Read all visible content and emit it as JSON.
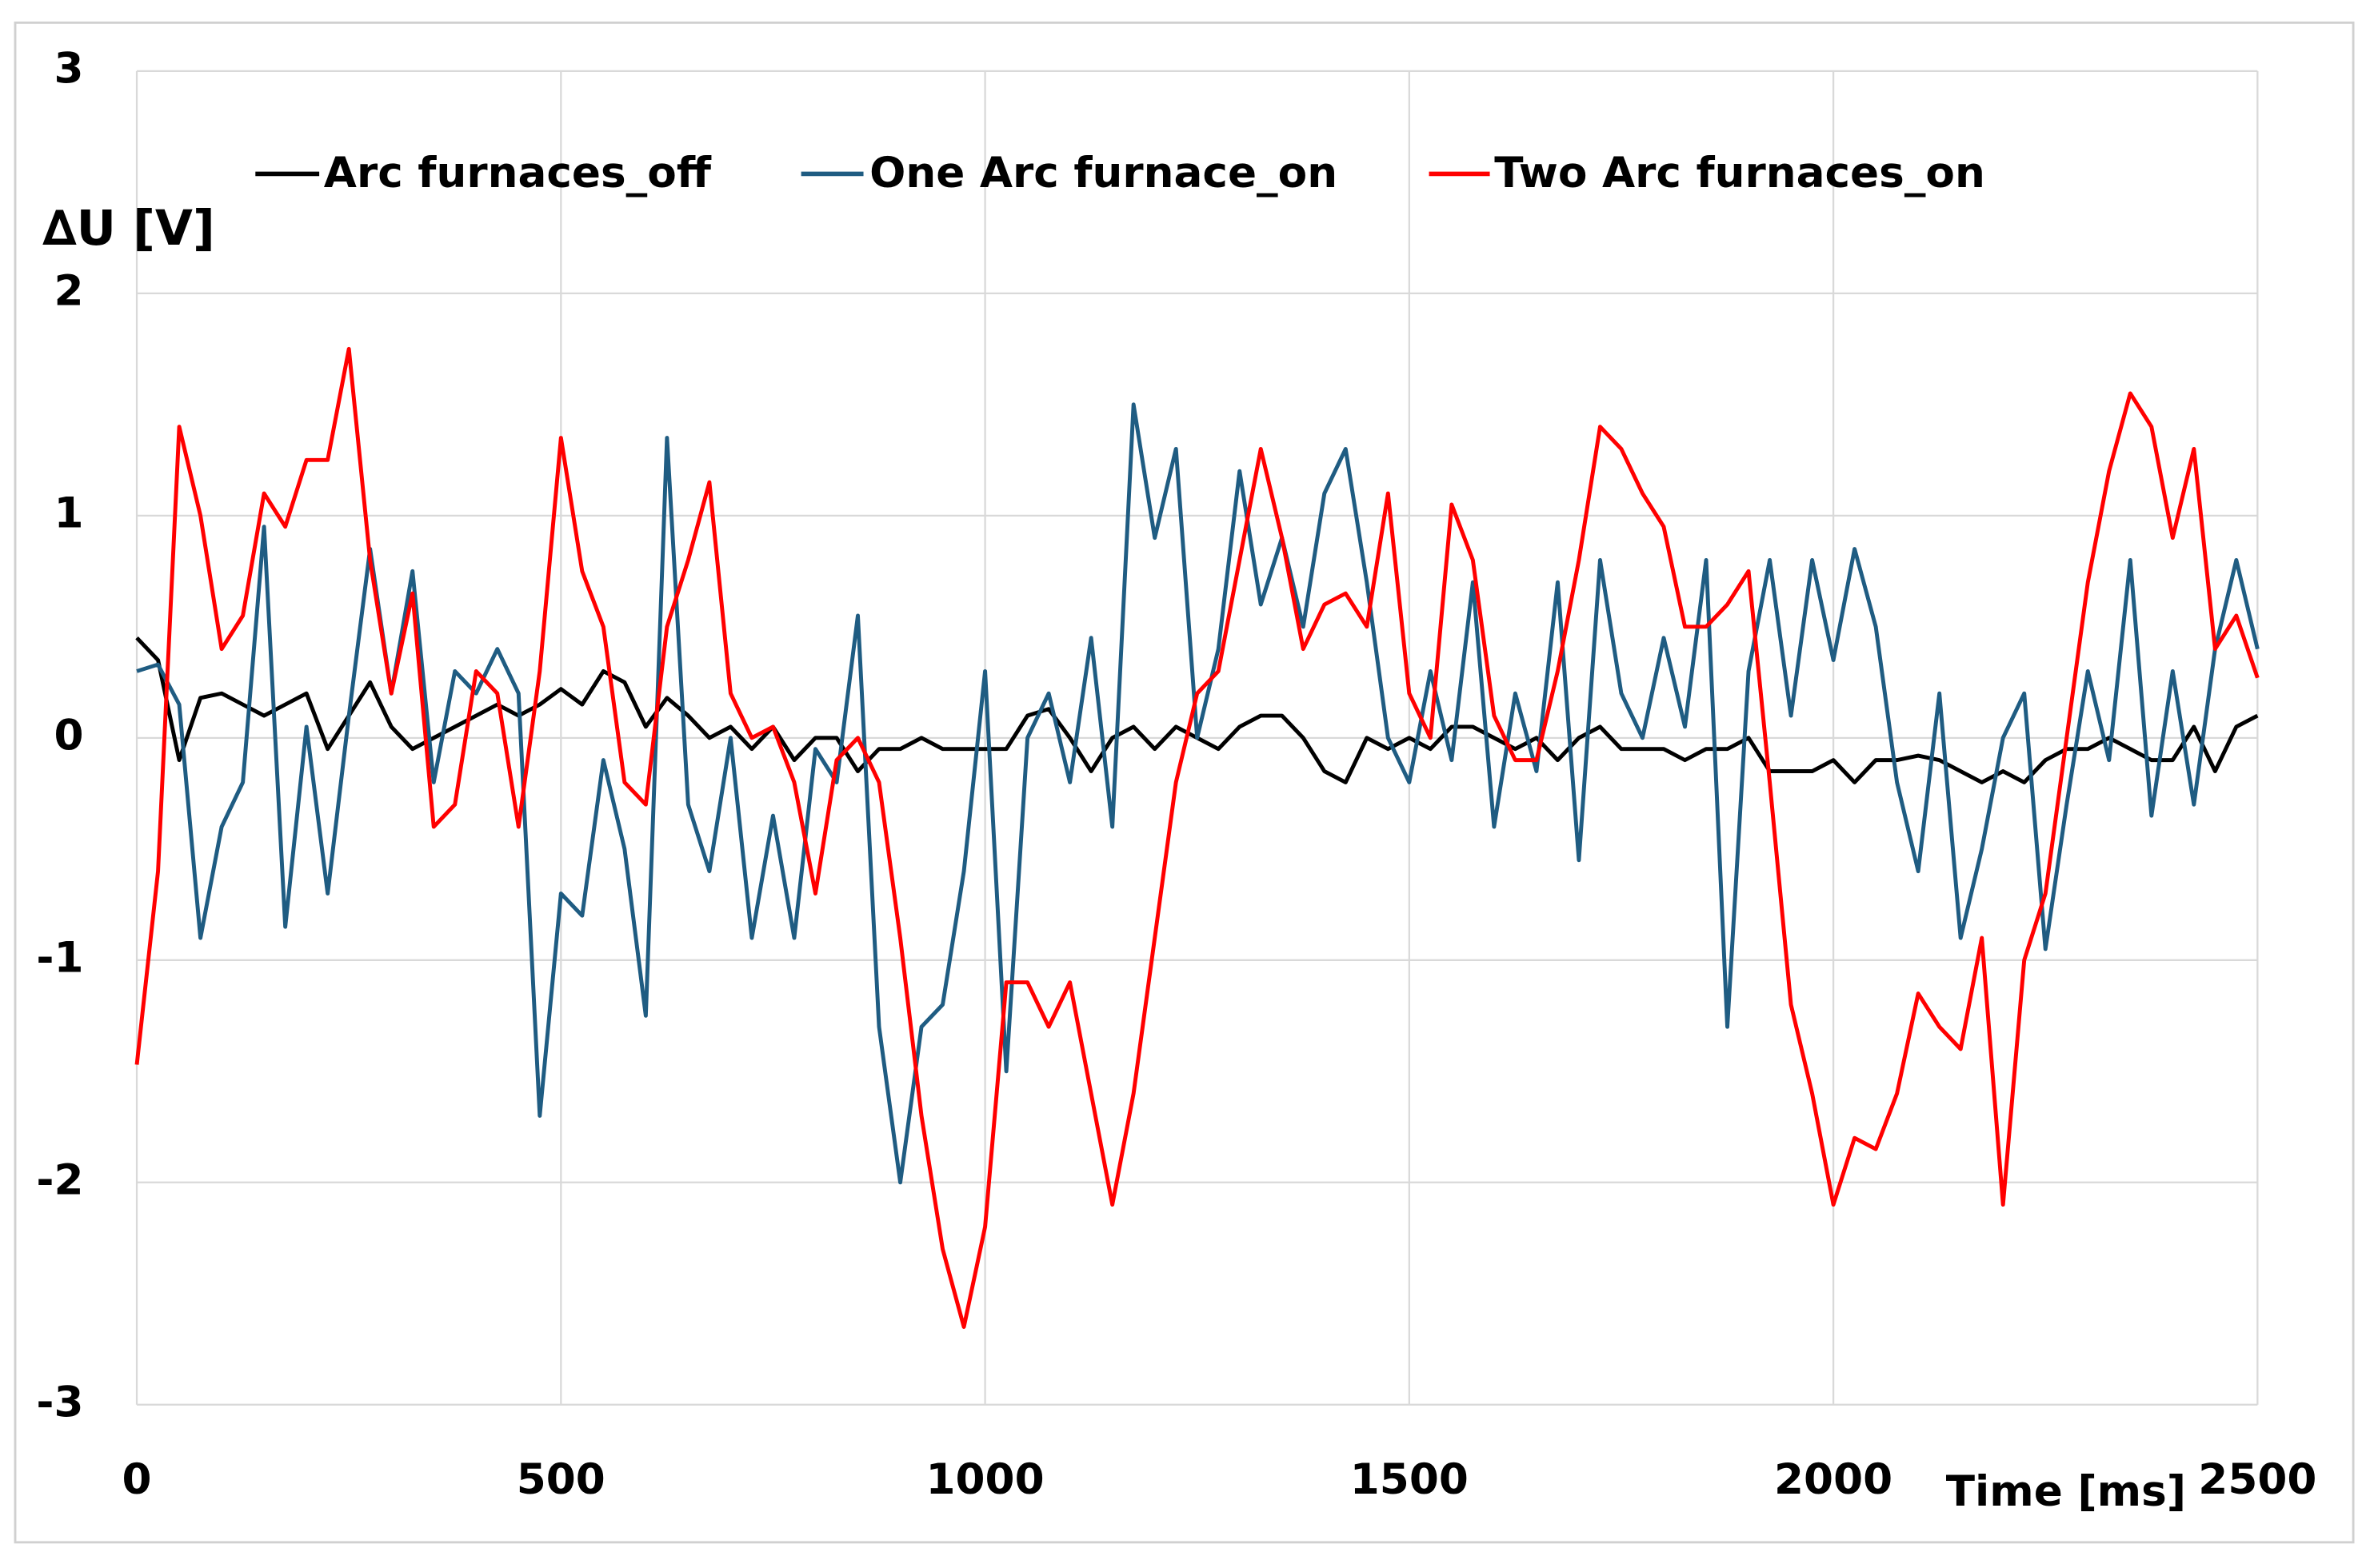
{
  "chart_data": {
    "type": "line",
    "ylabel": "∆U [V]",
    "xlabel": "Time [ms]",
    "legend": "top",
    "grid": true,
    "xlim": [
      0,
      2500
    ],
    "xticks": [
      0,
      500,
      1000,
      1500,
      2000,
      2500
    ],
    "ylim": [
      -3,
      3
    ],
    "yticks": [
      -3,
      -2,
      -1,
      0,
      1,
      2,
      3
    ],
    "x": [
      0,
      25,
      50,
      75,
      100,
      125,
      150,
      175,
      200,
      225,
      250,
      275,
      300,
      325,
      350,
      375,
      400,
      425,
      450,
      475,
      500,
      525,
      550,
      575,
      600,
      625,
      650,
      675,
      700,
      725,
      750,
      775,
      800,
      825,
      850,
      875,
      900,
      925,
      950,
      975,
      1000,
      1025,
      1050,
      1075,
      1100,
      1125,
      1150,
      1175,
      1200,
      1225,
      1250,
      1275,
      1300,
      1325,
      1350,
      1375,
      1400,
      1425,
      1450,
      1475,
      1500,
      1525,
      1550,
      1575,
      1600,
      1625,
      1650,
      1675,
      1700,
      1725,
      1750,
      1775,
      1800,
      1825,
      1850,
      1875,
      1900,
      1925,
      1950,
      1975,
      2000,
      2025,
      2050,
      2075,
      2100,
      2125,
      2150,
      2175,
      2200,
      2225,
      2250,
      2275,
      2300,
      2325,
      2350,
      2375,
      2400,
      2425,
      2450,
      2475,
      2500
    ],
    "series": [
      {
        "name": "Arc furnaces_off",
        "color": "#000000",
        "values": [
          0.45,
          0.35,
          -0.1,
          0.18,
          0.2,
          0.15,
          0.1,
          0.15,
          0.2,
          -0.05,
          0.1,
          0.25,
          0.05,
          -0.05,
          0.0,
          0.05,
          0.1,
          0.15,
          0.1,
          0.15,
          0.22,
          0.15,
          0.3,
          0.25,
          0.05,
          0.18,
          0.1,
          0.0,
          0.05,
          -0.05,
          0.05,
          -0.1,
          0.0,
          0.0,
          -0.15,
          -0.05,
          -0.05,
          0.0,
          -0.05,
          -0.05,
          -0.05,
          -0.05,
          0.1,
          0.13,
          0.0,
          -0.15,
          0.0,
          0.05,
          -0.05,
          0.05,
          0.0,
          -0.05,
          0.05,
          0.1,
          0.1,
          0.0,
          -0.15,
          -0.2,
          0.0,
          -0.05,
          0.0,
          -0.05,
          0.05,
          0.05,
          0.0,
          -0.05,
          0.0,
          -0.1,
          0.0,
          0.05,
          -0.05,
          -0.05,
          -0.05,
          -0.1,
          -0.05,
          -0.05,
          0.0,
          -0.15,
          -0.15,
          -0.15,
          -0.1,
          -0.2,
          -0.1,
          -0.1,
          -0.08,
          -0.1,
          -0.15,
          -0.2,
          -0.15,
          -0.2,
          -0.1,
          -0.05,
          -0.05,
          0.0,
          -0.05,
          -0.1,
          -0.1,
          0.05,
          -0.15,
          0.05,
          0.1
        ]
      },
      {
        "name": "One Arc furnace_on",
        "color": "#1f5c82",
        "values": [
          0.3,
          0.33,
          0.15,
          -0.9,
          -0.4,
          -0.2,
          0.95,
          -0.85,
          0.05,
          -0.7,
          0.1,
          0.85,
          0.2,
          0.75,
          -0.2,
          0.3,
          0.2,
          0.4,
          0.2,
          -1.7,
          -0.7,
          -0.8,
          -0.1,
          -0.5,
          -1.25,
          1.35,
          -0.3,
          -0.6,
          0.0,
          -0.9,
          -0.35,
          -0.9,
          -0.05,
          -0.2,
          0.55,
          -1.3,
          -2.0,
          -1.3,
          -1.2,
          -0.6,
          0.3,
          -1.5,
          0.0,
          0.2,
          -0.2,
          0.45,
          -0.4,
          1.5,
          0.9,
          1.3,
          0.0,
          0.4,
          1.2,
          0.6,
          0.9,
          0.5,
          1.1,
          1.3,
          0.7,
          0.0,
          -0.2,
          0.3,
          -0.1,
          0.7,
          -0.4,
          0.2,
          -0.15,
          0.7,
          -0.55,
          0.8,
          0.2,
          0.0,
          0.45,
          0.05,
          0.8,
          -1.3,
          0.3,
          0.8,
          0.1,
          0.8,
          0.35,
          0.85,
          0.5,
          -0.2,
          -0.6,
          0.2,
          -0.9,
          -0.5,
          0.0,
          0.2,
          -0.95,
          -0.3,
          0.3,
          -0.1,
          0.8,
          -0.35,
          0.3,
          -0.3,
          0.4,
          0.8,
          0.4
        ]
      },
      {
        "name": "Two Arc furnaces_on",
        "color": "#ff0000",
        "values": [
          -1.47,
          -0.6,
          1.4,
          1.0,
          0.4,
          0.55,
          1.1,
          0.95,
          1.25,
          1.25,
          1.75,
          0.8,
          0.2,
          0.65,
          -0.4,
          -0.3,
          0.3,
          0.2,
          -0.4,
          0.3,
          1.35,
          0.75,
          0.5,
          -0.2,
          -0.3,
          0.5,
          0.8,
          1.15,
          0.2,
          0.0,
          0.05,
          -0.2,
          -0.7,
          -0.1,
          0.0,
          -0.2,
          -0.9,
          -1.7,
          -2.3,
          -2.65,
          -2.2,
          -1.1,
          -1.1,
          -1.3,
          -1.1,
          -1.6,
          -2.1,
          -1.6,
          -0.9,
          -0.2,
          0.2,
          0.3,
          0.8,
          1.3,
          0.9,
          0.4,
          0.6,
          0.65,
          0.5,
          1.1,
          0.2,
          0.0,
          1.05,
          0.8,
          0.1,
          -0.1,
          -0.1,
          0.3,
          0.8,
          1.4,
          1.3,
          1.1,
          0.95,
          0.5,
          0.5,
          0.6,
          0.75,
          -0.2,
          -1.2,
          -1.6,
          -2.1,
          -1.8,
          -1.85,
          -1.6,
          -1.15,
          -1.3,
          -1.4,
          -0.9,
          -2.1,
          -1.0,
          -0.7,
          0.0,
          0.7,
          1.2,
          1.55,
          1.4,
          0.9,
          1.3,
          0.4,
          0.55,
          0.27
        ]
      }
    ]
  }
}
